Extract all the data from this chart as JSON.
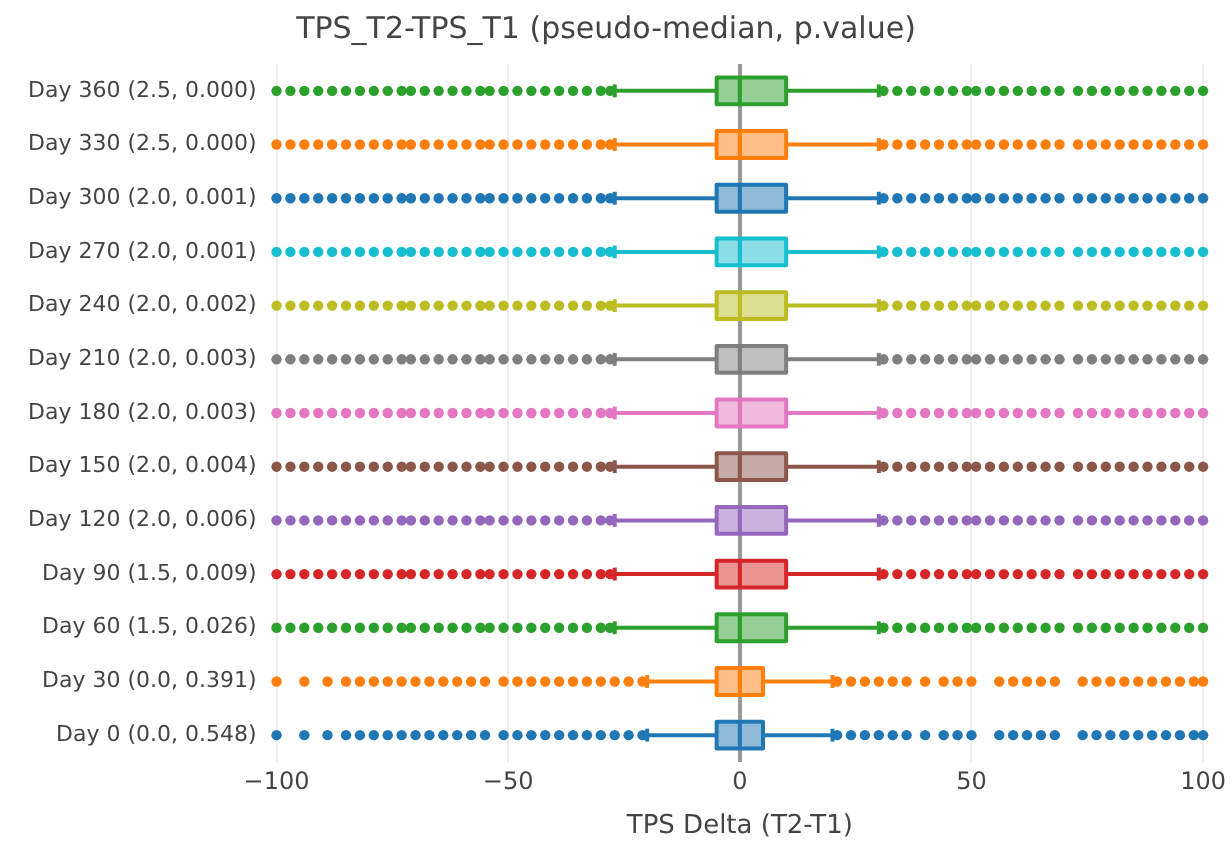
{
  "chart_data": {
    "type": "box",
    "orientation": "horizontal",
    "title": "TPS_T2-TPS_T1 (pseudo-median, p.value)",
    "xlabel": "TPS Delta (T2-T1)",
    "categories": [
      "Day 360 (2.5, 0.000)",
      "Day 330 (2.5, 0.000)",
      "Day 300 (2.0, 0.001)",
      "Day 270 (2.0, 0.001)",
      "Day 240 (2.0, 0.002)",
      "Day 210 (2.0, 0.003)",
      "Day 180 (2.0, 0.003)",
      "Day 150 (2.0, 0.004)",
      "Day 120 (2.0, 0.006)",
      "Day 90 (1.5, 0.009)",
      "Day 60 (1.5, 0.026)",
      "Day 30 (0.0, 0.391)",
      "Day 0 (0.0, 0.548)"
    ],
    "colors": [
      "#2ca02c",
      "#ff7f0e",
      "#1f77b4",
      "#17becf",
      "#bcbd22",
      "#7f7f7f",
      "#e377c2",
      "#8c564b",
      "#9467bd",
      "#d62728",
      "#2ca02c",
      "#ff7f0e",
      "#1f77b4"
    ],
    "boxes": [
      {
        "low": -27,
        "q1": -5,
        "median": 0,
        "q3": 10,
        "high": 30,
        "outliers": [
          -100,
          -97,
          -94,
          -91,
          -88,
          -85,
          -82,
          -79,
          -76,
          -73,
          -71,
          -68,
          -65,
          -62,
          -59,
          -56,
          -54,
          -51,
          -48,
          -45,
          -42,
          -39,
          -36,
          -33,
          -30,
          -28,
          31,
          34,
          37,
          40,
          43,
          46,
          49,
          51,
          54,
          57,
          60,
          63,
          66,
          69,
          73,
          76,
          79,
          82,
          85,
          88,
          91,
          94,
          97,
          100
        ]
      },
      {
        "low": -27,
        "q1": -5,
        "median": 0,
        "q3": 10,
        "high": 30,
        "outliers": [
          -100,
          -97,
          -94,
          -91,
          -88,
          -85,
          -82,
          -79,
          -76,
          -73,
          -71,
          -68,
          -65,
          -62,
          -59,
          -56,
          -54,
          -51,
          -48,
          -45,
          -42,
          -39,
          -36,
          -33,
          -30,
          -28,
          31,
          34,
          37,
          40,
          43,
          46,
          49,
          51,
          54,
          57,
          60,
          63,
          66,
          69,
          73,
          76,
          79,
          82,
          85,
          88,
          91,
          94,
          97,
          100
        ]
      },
      {
        "low": -27,
        "q1": -5,
        "median": 0,
        "q3": 10,
        "high": 30,
        "outliers": [
          -100,
          -97,
          -94,
          -91,
          -88,
          -85,
          -82,
          -79,
          -76,
          -73,
          -71,
          -68,
          -65,
          -62,
          -59,
          -56,
          -54,
          -51,
          -48,
          -45,
          -42,
          -39,
          -36,
          -33,
          -30,
          -28,
          31,
          34,
          37,
          40,
          43,
          46,
          49,
          51,
          54,
          57,
          60,
          63,
          66,
          69,
          73,
          76,
          79,
          82,
          85,
          88,
          91,
          94,
          97,
          100
        ]
      },
      {
        "low": -27,
        "q1": -5,
        "median": 0,
        "q3": 10,
        "high": 30,
        "outliers": [
          -100,
          -97,
          -94,
          -91,
          -88,
          -85,
          -82,
          -79,
          -76,
          -73,
          -71,
          -68,
          -65,
          -62,
          -59,
          -56,
          -54,
          -51,
          -48,
          -45,
          -42,
          -39,
          -36,
          -33,
          -30,
          -28,
          31,
          34,
          37,
          40,
          43,
          46,
          49,
          51,
          54,
          57,
          60,
          63,
          66,
          69,
          73,
          76,
          79,
          82,
          85,
          88,
          91,
          94,
          97,
          100
        ]
      },
      {
        "low": -27,
        "q1": -5,
        "median": 0,
        "q3": 10,
        "high": 30,
        "outliers": [
          -100,
          -97,
          -94,
          -91,
          -88,
          -85,
          -82,
          -79,
          -76,
          -73,
          -71,
          -68,
          -65,
          -62,
          -59,
          -56,
          -54,
          -51,
          -48,
          -45,
          -42,
          -39,
          -36,
          -33,
          -30,
          -28,
          31,
          34,
          37,
          40,
          43,
          46,
          49,
          51,
          54,
          57,
          60,
          63,
          66,
          69,
          73,
          76,
          79,
          82,
          85,
          88,
          91,
          94,
          97,
          100
        ]
      },
      {
        "low": -27,
        "q1": -5,
        "median": 0,
        "q3": 10,
        "high": 30,
        "outliers": [
          -100,
          -97,
          -94,
          -91,
          -88,
          -85,
          -82,
          -79,
          -76,
          -73,
          -71,
          -68,
          -65,
          -62,
          -59,
          -56,
          -54,
          -51,
          -48,
          -45,
          -42,
          -39,
          -36,
          -33,
          -30,
          -28,
          31,
          34,
          37,
          40,
          43,
          46,
          49,
          51,
          54,
          57,
          60,
          63,
          66,
          69,
          73,
          76,
          79,
          82,
          85,
          88,
          91,
          94,
          97,
          100
        ]
      },
      {
        "low": -27,
        "q1": -5,
        "median": 0,
        "q3": 10,
        "high": 30,
        "outliers": [
          -100,
          -97,
          -94,
          -91,
          -88,
          -85,
          -82,
          -79,
          -76,
          -73,
          -71,
          -68,
          -65,
          -62,
          -59,
          -56,
          -54,
          -51,
          -48,
          -45,
          -42,
          -39,
          -36,
          -33,
          -30,
          -28,
          31,
          34,
          37,
          40,
          43,
          46,
          49,
          51,
          54,
          57,
          60,
          63,
          66,
          69,
          73,
          76,
          79,
          82,
          85,
          88,
          91,
          94,
          97,
          100
        ]
      },
      {
        "low": -27,
        "q1": -5,
        "median": 0,
        "q3": 10,
        "high": 30,
        "outliers": [
          -100,
          -97,
          -94,
          -91,
          -88,
          -85,
          -82,
          -79,
          -76,
          -73,
          -71,
          -68,
          -65,
          -62,
          -59,
          -56,
          -54,
          -51,
          -48,
          -45,
          -42,
          -39,
          -36,
          -33,
          -30,
          -28,
          31,
          34,
          37,
          40,
          43,
          46,
          49,
          51,
          54,
          57,
          60,
          63,
          66,
          69,
          73,
          76,
          79,
          82,
          85,
          88,
          91,
          94,
          97,
          100
        ]
      },
      {
        "low": -27,
        "q1": -5,
        "median": 0,
        "q3": 10,
        "high": 30,
        "outliers": [
          -100,
          -97,
          -94,
          -91,
          -88,
          -85,
          -82,
          -79,
          -76,
          -73,
          -71,
          -68,
          -65,
          -62,
          -59,
          -56,
          -54,
          -51,
          -48,
          -45,
          -42,
          -39,
          -36,
          -33,
          -30,
          -28,
          31,
          34,
          37,
          40,
          43,
          46,
          49,
          51,
          54,
          57,
          60,
          63,
          66,
          69,
          73,
          76,
          79,
          82,
          85,
          88,
          91,
          94,
          97,
          100
        ]
      },
      {
        "low": -27,
        "q1": -5,
        "median": 0,
        "q3": 10,
        "high": 30,
        "outliers": [
          -100,
          -97,
          -94,
          -91,
          -88,
          -85,
          -82,
          -79,
          -76,
          -73,
          -71,
          -68,
          -65,
          -62,
          -59,
          -56,
          -54,
          -51,
          -48,
          -45,
          -42,
          -39,
          -36,
          -33,
          -30,
          -28,
          31,
          34,
          37,
          40,
          43,
          46,
          49,
          51,
          54,
          57,
          60,
          63,
          66,
          69,
          73,
          76,
          79,
          82,
          85,
          88,
          91,
          94,
          97,
          100
        ]
      },
      {
        "low": -27,
        "q1": -5,
        "median": 0,
        "q3": 10,
        "high": 30,
        "outliers": [
          -100,
          -97,
          -94,
          -91,
          -88,
          -85,
          -82,
          -79,
          -76,
          -73,
          -71,
          -68,
          -65,
          -62,
          -59,
          -56,
          -54,
          -51,
          -48,
          -45,
          -42,
          -39,
          -36,
          -33,
          -30,
          -28,
          31,
          34,
          37,
          40,
          43,
          46,
          49,
          51,
          54,
          57,
          60,
          63,
          66,
          69,
          73,
          76,
          79,
          82,
          85,
          88,
          91,
          94,
          97,
          100
        ]
      },
      {
        "low": -20,
        "q1": -5,
        "median": 0,
        "q3": 5,
        "high": 20,
        "outliers": [
          -100,
          -94,
          -89,
          -85,
          -82,
          -79,
          -76,
          -73,
          -70,
          -67,
          -64,
          -61,
          -58,
          -55,
          -51,
          -48,
          -45,
          -42,
          -39,
          -36,
          -33,
          -30,
          -27,
          -24,
          -21,
          21,
          24,
          27,
          30,
          33,
          36,
          40,
          44,
          47,
          50,
          56,
          59,
          62,
          65,
          68,
          74,
          77,
          80,
          83,
          86,
          89,
          92,
          95,
          98,
          100
        ]
      },
      {
        "low": -20,
        "q1": -5,
        "median": 0,
        "q3": 5,
        "high": 20,
        "outliers": [
          -100,
          -94,
          -89,
          -85,
          -82,
          -79,
          -76,
          -73,
          -70,
          -67,
          -64,
          -61,
          -58,
          -55,
          -51,
          -48,
          -45,
          -42,
          -39,
          -36,
          -33,
          -30,
          -27,
          -24,
          -21,
          21,
          24,
          27,
          30,
          33,
          36,
          40,
          44,
          47,
          50,
          56,
          59,
          62,
          65,
          68,
          74,
          77,
          80,
          83,
          86,
          89,
          92,
          95,
          98,
          100
        ]
      }
    ],
    "xlim": [
      -100,
      100
    ],
    "xticks": [
      -100,
      -50,
      0,
      50,
      100
    ],
    "grid": "x"
  }
}
